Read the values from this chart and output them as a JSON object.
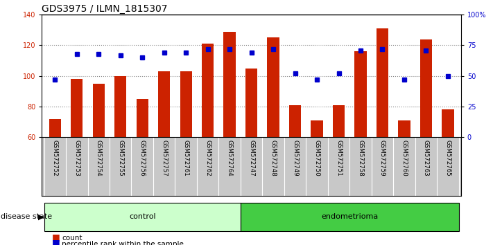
{
  "title": "GDS3975 / ILMN_1815307",
  "samples": [
    "GSM572752",
    "GSM572753",
    "GSM572754",
    "GSM572755",
    "GSM572756",
    "GSM572757",
    "GSM572761",
    "GSM572762",
    "GSM572764",
    "GSM572747",
    "GSM572748",
    "GSM572749",
    "GSM572750",
    "GSM572751",
    "GSM572758",
    "GSM572759",
    "GSM572760",
    "GSM572763",
    "GSM572765"
  ],
  "count_values": [
    72,
    98,
    95,
    100,
    85,
    103,
    103,
    121,
    129,
    105,
    125,
    81,
    71,
    81,
    116,
    131,
    71,
    124,
    78
  ],
  "percentile_values": [
    47,
    68,
    68,
    67,
    65,
    69,
    69,
    72,
    72,
    69,
    72,
    52,
    47,
    52,
    71,
    72,
    47,
    71,
    50
  ],
  "group_labels": [
    "control",
    "endometrioma"
  ],
  "group_control_count": 9,
  "group_endometrioma_count": 10,
  "ylim_left": [
    60,
    140
  ],
  "ylim_right": [
    0,
    100
  ],
  "yticks_left": [
    60,
    80,
    100,
    120,
    140
  ],
  "yticks_right": [
    0,
    25,
    50,
    75,
    100
  ],
  "ytick_labels_right": [
    "0",
    "25",
    "50",
    "75",
    "100%"
  ],
  "bar_color": "#cc2200",
  "dot_color": "#0000cc",
  "bar_width": 0.55,
  "bg_color_plot": "#ffffff",
  "tick_label_bg": "#c8c8c8",
  "control_fill": "#ccffcc",
  "endometrioma_fill": "#44cc44",
  "legend_count_label": "count",
  "legend_percentile_label": "percentile rank within the sample",
  "disease_state_label": "disease state",
  "grid_lines": [
    80,
    100,
    120
  ],
  "title_fontsize": 10,
  "tick_fontsize": 7,
  "label_fontsize": 8
}
